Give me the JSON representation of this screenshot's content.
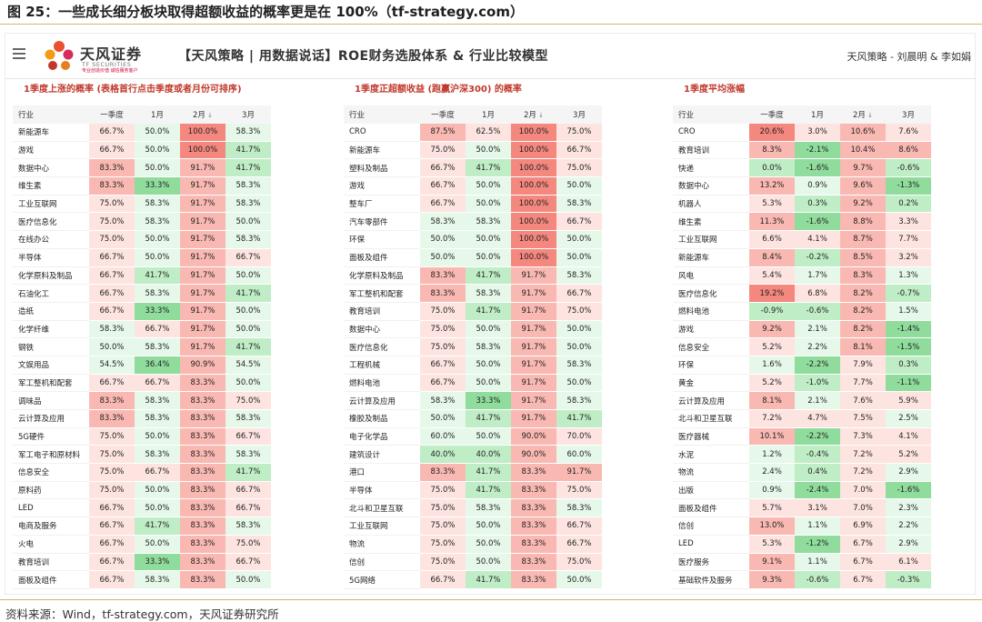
{
  "figure": {
    "title": "图 25：一些成长细分板块取得超额收益的概率更是在 100%（tf-strategy.com）",
    "source": "资料来源：Wind，tf-strategy.com，天风证券研究所"
  },
  "header": {
    "logo_name": "天风证券",
    "logo_en": "TF SECURITIES",
    "logo_sub": "专业创造价值 诚信服务客户",
    "title": "【天风策略 | 用数据说话】ROE财务选股体系 & 行业比较模型",
    "author": "天风策略 - 刘晨明 & 李如娟"
  },
  "colors": {
    "red_strong": "#f4877e",
    "red_mid": "#f9b9b2",
    "red_light": "#fde4e1",
    "green_strong": "#8fdc9c",
    "green_mid": "#bfedc6",
    "green_light": "#e6f8e9",
    "title_red": "#c0392b"
  },
  "columns": [
    "行业",
    "一季度",
    "1月",
    "2月",
    "3月"
  ],
  "sort_icon": "↓",
  "panels": [
    {
      "title": "1季度上涨的概率 (表格首行点击季度或者月份可排序)",
      "rows": [
        [
          "新能源车",
          "66.7%",
          "50.0%",
          "100.0%",
          "58.3%"
        ],
        [
          "游戏",
          "66.7%",
          "50.0%",
          "100.0%",
          "41.7%"
        ],
        [
          "数据中心",
          "83.3%",
          "50.0%",
          "91.7%",
          "41.7%"
        ],
        [
          "维生素",
          "83.3%",
          "33.3%",
          "91.7%",
          "58.3%"
        ],
        [
          "工业互联网",
          "75.0%",
          "58.3%",
          "91.7%",
          "58.3%"
        ],
        [
          "医疗信息化",
          "75.0%",
          "58.3%",
          "91.7%",
          "50.0%"
        ],
        [
          "在线办公",
          "75.0%",
          "50.0%",
          "91.7%",
          "58.3%"
        ],
        [
          "半导体",
          "66.7%",
          "50.0%",
          "91.7%",
          "66.7%"
        ],
        [
          "化学原料及制品",
          "66.7%",
          "41.7%",
          "91.7%",
          "50.0%"
        ],
        [
          "石油化工",
          "66.7%",
          "58.3%",
          "91.7%",
          "41.7%"
        ],
        [
          "造纸",
          "66.7%",
          "33.3%",
          "91.7%",
          "50.0%"
        ],
        [
          "化学纤维",
          "58.3%",
          "66.7%",
          "91.7%",
          "50.0%"
        ],
        [
          "钢铁",
          "50.0%",
          "58.3%",
          "91.7%",
          "41.7%"
        ],
        [
          "文娱用品",
          "54.5%",
          "36.4%",
          "90.9%",
          "54.5%"
        ],
        [
          "军工整机和配套",
          "66.7%",
          "66.7%",
          "83.3%",
          "50.0%"
        ],
        [
          "调味品",
          "83.3%",
          "58.3%",
          "83.3%",
          "75.0%"
        ],
        [
          "云计算及应用",
          "83.3%",
          "58.3%",
          "83.3%",
          "58.3%"
        ],
        [
          "5G硬件",
          "75.0%",
          "50.0%",
          "83.3%",
          "66.7%"
        ],
        [
          "军工电子和原材料",
          "75.0%",
          "58.3%",
          "83.3%",
          "58.3%"
        ],
        [
          "信息安全",
          "75.0%",
          "66.7%",
          "83.3%",
          "41.7%"
        ],
        [
          "原料药",
          "75.0%",
          "50.0%",
          "83.3%",
          "66.7%"
        ],
        [
          "LED",
          "66.7%",
          "50.0%",
          "83.3%",
          "66.7%"
        ],
        [
          "电商及服务",
          "66.7%",
          "41.7%",
          "83.3%",
          "58.3%"
        ],
        [
          "火电",
          "66.7%",
          "50.0%",
          "83.3%",
          "75.0%"
        ],
        [
          "教育培训",
          "66.7%",
          "33.3%",
          "83.3%",
          "66.7%"
        ],
        [
          "面板及组件",
          "66.7%",
          "58.3%",
          "83.3%",
          "50.0%"
        ]
      ]
    },
    {
      "title": "1季度正超额收益 (跑赢沪深300) 的概率",
      "rows": [
        [
          "CRO",
          "87.5%",
          "62.5%",
          "100.0%",
          "75.0%"
        ],
        [
          "新能源车",
          "75.0%",
          "50.0%",
          "100.0%",
          "66.7%"
        ],
        [
          "塑料及制品",
          "66.7%",
          "41.7%",
          "100.0%",
          "75.0%"
        ],
        [
          "游戏",
          "66.7%",
          "50.0%",
          "100.0%",
          "50.0%"
        ],
        [
          "整车厂",
          "66.7%",
          "50.0%",
          "100.0%",
          "58.3%"
        ],
        [
          "汽车零部件",
          "58.3%",
          "58.3%",
          "100.0%",
          "66.7%"
        ],
        [
          "环保",
          "50.0%",
          "50.0%",
          "100.0%",
          "50.0%"
        ],
        [
          "面板及组件",
          "50.0%",
          "50.0%",
          "100.0%",
          "50.0%"
        ],
        [
          "化学原料及制品",
          "83.3%",
          "41.7%",
          "91.7%",
          "58.3%"
        ],
        [
          "军工整机和配套",
          "83.3%",
          "58.3%",
          "91.7%",
          "66.7%"
        ],
        [
          "教育培训",
          "75.0%",
          "41.7%",
          "91.7%",
          "75.0%"
        ],
        [
          "数据中心",
          "75.0%",
          "50.0%",
          "91.7%",
          "50.0%"
        ],
        [
          "医疗信息化",
          "75.0%",
          "58.3%",
          "91.7%",
          "50.0%"
        ],
        [
          "工程机械",
          "66.7%",
          "50.0%",
          "91.7%",
          "58.3%"
        ],
        [
          "燃料电池",
          "66.7%",
          "50.0%",
          "91.7%",
          "50.0%"
        ],
        [
          "云计算及应用",
          "58.3%",
          "33.3%",
          "91.7%",
          "58.3%"
        ],
        [
          "橡胶及制品",
          "50.0%",
          "41.7%",
          "91.7%",
          "41.7%"
        ],
        [
          "电子化学品",
          "60.0%",
          "50.0%",
          "90.0%",
          "70.0%"
        ],
        [
          "建筑设计",
          "40.0%",
          "40.0%",
          "90.0%",
          "60.0%"
        ],
        [
          "港口",
          "83.3%",
          "41.7%",
          "83.3%",
          "91.7%"
        ],
        [
          "半导体",
          "75.0%",
          "41.7%",
          "83.3%",
          "75.0%"
        ],
        [
          "北斗和卫星互联",
          "75.0%",
          "58.3%",
          "83.3%",
          "58.3%"
        ],
        [
          "工业互联网",
          "75.0%",
          "50.0%",
          "83.3%",
          "66.7%"
        ],
        [
          "物流",
          "75.0%",
          "50.0%",
          "83.3%",
          "66.7%"
        ],
        [
          "信创",
          "75.0%",
          "50.0%",
          "83.3%",
          "75.0%"
        ],
        [
          "5G网络",
          "66.7%",
          "41.7%",
          "83.3%",
          "50.0%"
        ]
      ]
    },
    {
      "title": "1季度平均涨幅",
      "rows": [
        [
          "CRO",
          "20.6%",
          "3.0%",
          "10.6%",
          "7.6%"
        ],
        [
          "教育培训",
          "8.3%",
          "-2.1%",
          "10.4%",
          "8.6%"
        ],
        [
          "快递",
          "0.0%",
          "-1.6%",
          "9.7%",
          "-0.6%"
        ],
        [
          "数据中心",
          "13.2%",
          "0.9%",
          "9.6%",
          "-1.3%"
        ],
        [
          "机器人",
          "5.3%",
          "0.3%",
          "9.2%",
          "0.2%"
        ],
        [
          "维生素",
          "11.3%",
          "-1.6%",
          "8.8%",
          "3.3%"
        ],
        [
          "工业互联网",
          "6.6%",
          "4.1%",
          "8.7%",
          "7.7%"
        ],
        [
          "新能源车",
          "8.4%",
          "-0.2%",
          "8.5%",
          "3.2%"
        ],
        [
          "风电",
          "5.4%",
          "1.7%",
          "8.3%",
          "1.3%"
        ],
        [
          "医疗信息化",
          "19.2%",
          "6.8%",
          "8.2%",
          "-0.7%"
        ],
        [
          "燃料电池",
          "-0.9%",
          "-0.6%",
          "8.2%",
          "1.5%"
        ],
        [
          "游戏",
          "9.2%",
          "2.1%",
          "8.2%",
          "-1.4%"
        ],
        [
          "信息安全",
          "5.2%",
          "2.2%",
          "8.1%",
          "-1.5%"
        ],
        [
          "环保",
          "1.6%",
          "-2.2%",
          "7.9%",
          "0.3%"
        ],
        [
          "黄金",
          "5.2%",
          "-1.0%",
          "7.7%",
          "-1.1%"
        ],
        [
          "云计算及应用",
          "8.1%",
          "2.1%",
          "7.6%",
          "5.9%"
        ],
        [
          "北斗和卫星互联",
          "7.2%",
          "4.7%",
          "7.5%",
          "2.5%"
        ],
        [
          "医疗器械",
          "10.1%",
          "-2.2%",
          "7.3%",
          "4.1%"
        ],
        [
          "水泥",
          "1.2%",
          "-0.4%",
          "7.2%",
          "5.2%"
        ],
        [
          "物流",
          "2.4%",
          "0.4%",
          "7.2%",
          "2.9%"
        ],
        [
          "出版",
          "0.9%",
          "-2.4%",
          "7.0%",
          "-1.6%"
        ],
        [
          "面板及组件",
          "5.7%",
          "3.1%",
          "7.0%",
          "2.3%"
        ],
        [
          "信创",
          "13.0%",
          "1.1%",
          "6.9%",
          "2.2%"
        ],
        [
          "LED",
          "5.3%",
          "-1.2%",
          "6.7%",
          "2.9%"
        ],
        [
          "医疗服务",
          "9.1%",
          "1.1%",
          "6.7%",
          "6.1%"
        ],
        [
          "基础软件及服务",
          "9.3%",
          "-0.6%",
          "6.7%",
          "-0.3%"
        ]
      ]
    }
  ]
}
